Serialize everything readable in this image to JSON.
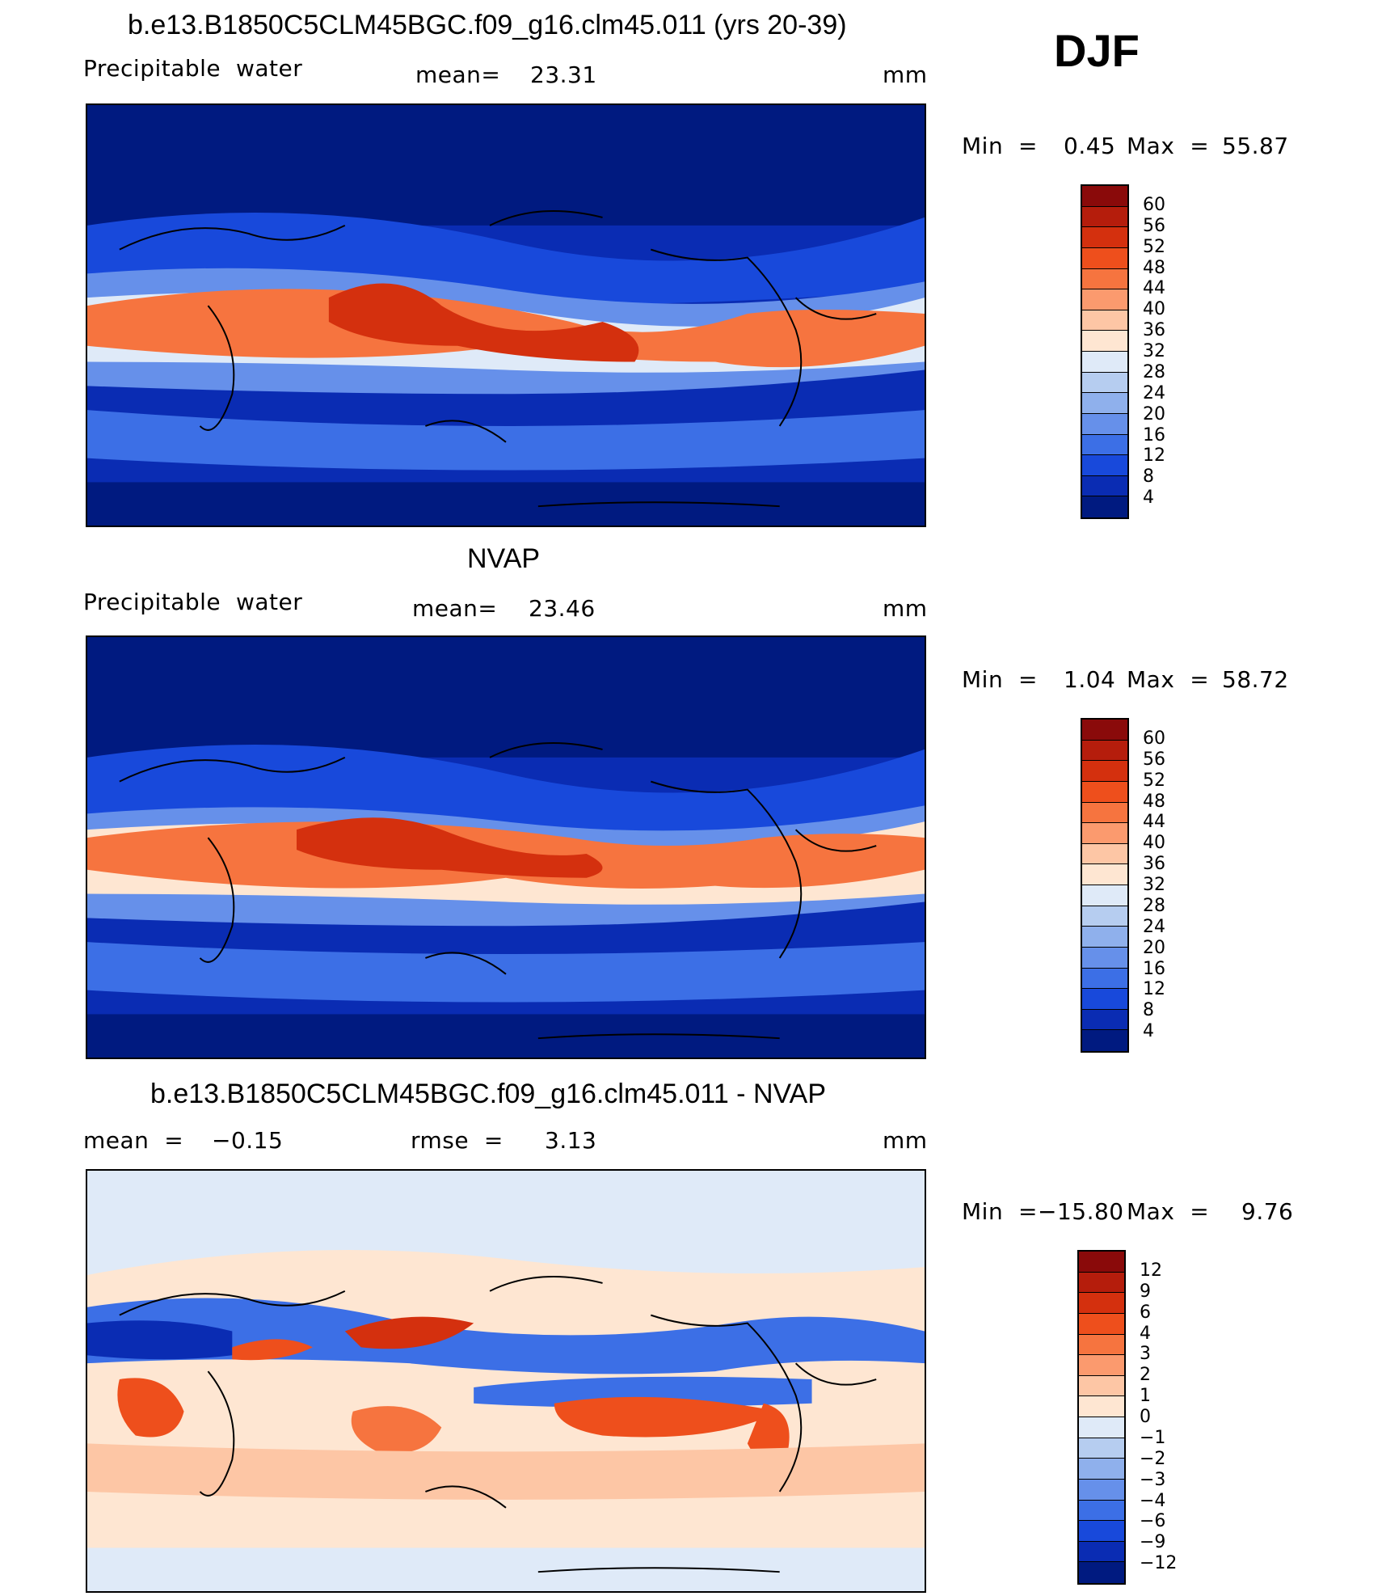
{
  "season": "DJF",
  "panels": [
    {
      "title": "b.e13.B1850C5CLM45BGC.f09_g16.clm45.011 (yrs 20-39)",
      "left_label": "Precipitable  water",
      "stat_label": "mean=",
      "stat_value": "23.31",
      "units": "mm",
      "min_label": "Min  =",
      "min_value": "0.45",
      "max_label": "Max  =",
      "max_value": "55.87",
      "colorbar_ticks": [
        "60",
        "56",
        "52",
        "48",
        "44",
        "40",
        "36",
        "32",
        "28",
        "24",
        "20",
        "16",
        "12",
        "8",
        "4"
      ],
      "colorbar_colors": [
        "#8a0a0a",
        "#b51d0c",
        "#d4300e",
        "#ee4f1c",
        "#f6743f",
        "#fb9a6e",
        "#fdc6a5",
        "#fee6d2",
        "#dfeaf8",
        "#b6cdf0",
        "#8fb0ec",
        "#6690ea",
        "#3c6fe6",
        "#1849db",
        "#0a2cb3",
        "#001a80"
      ]
    },
    {
      "title": "NVAP",
      "left_label": "Precipitable  water",
      "stat_label": "mean=",
      "stat_value": "23.46",
      "units": "mm",
      "min_label": "Min  =",
      "min_value": "1.04",
      "max_label": "Max  =",
      "max_value": "58.72",
      "colorbar_ticks": [
        "60",
        "56",
        "52",
        "48",
        "44",
        "40",
        "36",
        "32",
        "28",
        "24",
        "20",
        "16",
        "12",
        "8",
        "4"
      ],
      "colorbar_colors": [
        "#8a0a0a",
        "#b51d0c",
        "#d4300e",
        "#ee4f1c",
        "#f6743f",
        "#fb9a6e",
        "#fdc6a5",
        "#fee6d2",
        "#dfeaf8",
        "#b6cdf0",
        "#8fb0ec",
        "#6690ea",
        "#3c6fe6",
        "#1849db",
        "#0a2cb3",
        "#001a80"
      ]
    },
    {
      "title": "b.e13.B1850C5CLM45BGC.f09_g16.clm45.011 - NVAP",
      "left_label": "mean  =",
      "left_value": "−0.15",
      "stat_label": "rmse  =",
      "stat_value": "3.13",
      "units": "mm",
      "min_label": "Min  =",
      "min_value": "−15.80",
      "max_label": "Max  =",
      "max_value": "9.76",
      "colorbar_ticks": [
        "12",
        "9",
        "6",
        "4",
        "3",
        "2",
        "1",
        "0",
        "−1",
        "−2",
        "−3",
        "−4",
        "−6",
        "−9",
        "−12"
      ],
      "colorbar_colors": [
        "#8a0a0a",
        "#b51d0c",
        "#d4300e",
        "#ee4f1c",
        "#f6743f",
        "#fb9a6e",
        "#fdc6a5",
        "#fee6d2",
        "#dfeaf8",
        "#b6cdf0",
        "#8fb0ec",
        "#6690ea",
        "#3c6fe6",
        "#1849db",
        "#0a2cb3",
        "#001a80"
      ]
    }
  ]
}
